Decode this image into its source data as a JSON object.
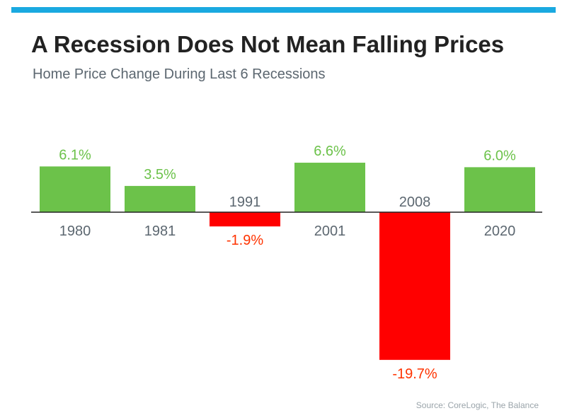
{
  "title": "A Recession Does Not Mean Falling Prices",
  "subtitle": "Home Price Change During Last 6 Recessions",
  "source": "Source: CoreLogic, The Balance",
  "colors": {
    "accent_bar": "#1aa9e0",
    "positive": "#6cc24a",
    "negative": "#ff0000",
    "negative_label": "#ff3300",
    "category_label": "#5c6770"
  },
  "chart_data": {
    "type": "bar",
    "categories": [
      "1980",
      "1981",
      "1991",
      "2001",
      "2008",
      "2020"
    ],
    "values": [
      6.1,
      3.5,
      -1.9,
      6.6,
      -19.7,
      6.0
    ],
    "value_labels": [
      "6.1%",
      "3.5%",
      "-1.9%",
      "6.6%",
      "-19.7%",
      "6.0%"
    ],
    "title": "",
    "xlabel": "",
    "ylabel": "",
    "unit": "%",
    "grid": false,
    "legend": "none"
  }
}
